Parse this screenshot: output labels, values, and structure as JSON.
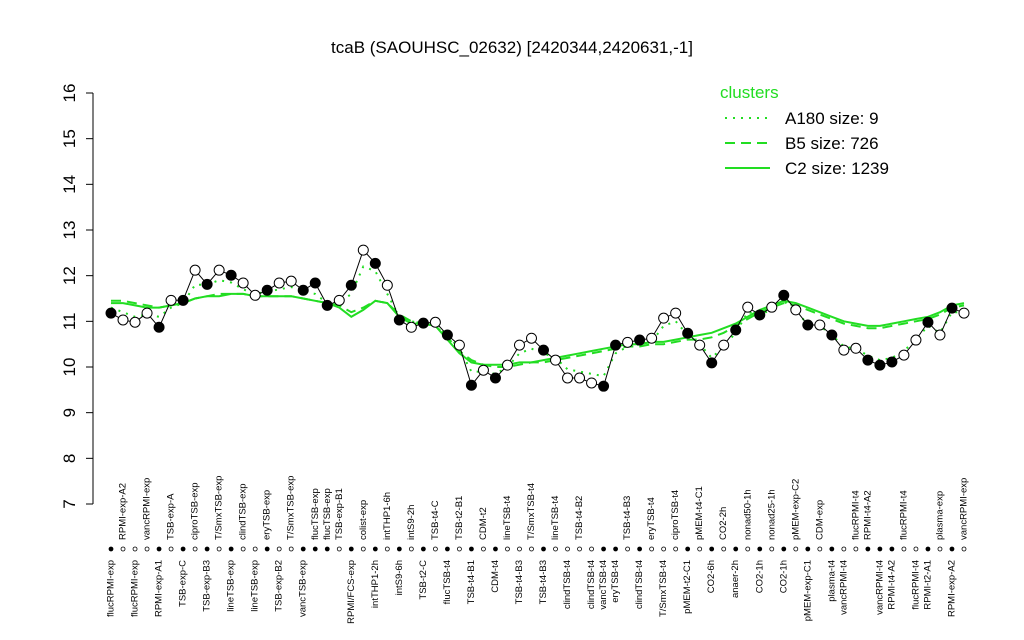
{
  "chart_data": {
    "type": "line",
    "title": "tcaB (SAOUHSC_02632) [2420344,2420631,-1]",
    "ylim": [
      7,
      16
    ],
    "yticks": [
      7,
      8,
      9,
      10,
      11,
      12,
      13,
      14,
      15,
      16
    ],
    "legend_title": "clusters",
    "legend_position": "top-right",
    "legend_color": "#22dd22",
    "categories": [
      "flucRPMI-exp",
      "RPMI-exp-A2",
      "flucRPMI-exp",
      "vancRPMI-exp",
      "RPMI-exp-A1",
      "TSB-exp-A",
      "TSB-exp-C",
      "ciproTSB-exp",
      "TSB-exp-B3",
      "T/SmxTSB-exp",
      "lineTSB-exp",
      "clindTSB-exp",
      "lineTSB-exp",
      "eryTSB-exp",
      "TSB-exp-B2",
      "T/SmxTSB-exp",
      "vancTSB-exp",
      "flucTSB-exp",
      "flucTSB-exp",
      "TSB-exp-B1",
      "RPMI/FCS-exp",
      "colist-exp",
      "intTHP1-2h",
      "intTHP1-6h",
      "intS9-6h",
      "intS9-2h",
      "TSB-t2-C",
      "TSB-t4-C",
      "flucTSB-t4",
      "TSB-t2-B1",
      "TSB-t4-B1",
      "CDM-t2",
      "CDM-t4",
      "lineTSB-t4",
      "TSB-t4-B3",
      "T/SmxTSB-t4",
      "TSB-t4-B3",
      "lineTSB-t4",
      "clindTSB-t4",
      "TSB-t4-B2",
      "clindTSB-t4",
      "vancTSB-t4",
      "eryTSB-t4",
      "TSB-t4-B3",
      "clindTSB-t4",
      "eryTSB-t4",
      "T/SmxTSB-t4",
      "ciproTSB-t4",
      "pMEM-t2-C1",
      "pMEM-t4-C1",
      "CO2-6h",
      "CO2-2h",
      "anaer-2h",
      "nonad50-1h",
      "CO2-1h",
      "nonad25-1h",
      "CO2-1h",
      "pMEM-exp-C2",
      "pMEM-exp-C1",
      "CDM-exp",
      "plasma-t4",
      "vancRPMI-t4",
      "flucRPMI-t4",
      "RPMI-t4-A2",
      "vancRPMI-t4",
      "RPMI-t4-A2",
      "flucRPMI-t4",
      "flucRPMI-t4",
      "RPMI-t2-A1",
      "plasma-exp",
      "RPMI-exp-A2",
      "vancRPMI-exp"
    ],
    "label_side": [
      "bottom",
      "top",
      "bottom",
      "top",
      "bottom",
      "top",
      "bottom",
      "top",
      "bottom",
      "top",
      "bottom",
      "top",
      "bottom",
      "top",
      "bottom",
      "top",
      "bottom",
      "top",
      "top",
      "top",
      "bottom",
      "top",
      "bottom",
      "top",
      "bottom",
      "top",
      "bottom",
      "top",
      "bottom",
      "top",
      "bottom",
      "top",
      "bottom",
      "top",
      "bottom",
      "top",
      "bottom",
      "top",
      "bottom",
      "top",
      "bottom",
      "bottom",
      "bottom",
      "top",
      "bottom",
      "top",
      "bottom",
      "top",
      "bottom",
      "top",
      "bottom",
      "top",
      "bottom",
      "top",
      "bottom",
      "top",
      "bottom",
      "top",
      "bottom",
      "top",
      "bottom",
      "bottom",
      "top",
      "top",
      "bottom",
      "bottom",
      "top",
      "bottom",
      "bottom",
      "top",
      "bottom",
      "top"
    ],
    "values": [
      11.18,
      11.03,
      10.98,
      11.18,
      10.87,
      11.46,
      11.46,
      12.12,
      11.81,
      12.12,
      12.01,
      11.84,
      11.57,
      11.68,
      11.84,
      11.88,
      11.68,
      11.84,
      11.35,
      11.46,
      11.79,
      12.56,
      12.27,
      11.79,
      11.03,
      10.87,
      10.96,
      10.98,
      10.7,
      10.48,
      9.6,
      9.93,
      9.76,
      10.04,
      10.48,
      10.63,
      10.37,
      10.15,
      9.76,
      9.76,
      9.65,
      9.58,
      10.48,
      10.54,
      10.59,
      10.63,
      11.07,
      11.18,
      10.74,
      10.48,
      10.09,
      10.48,
      10.81,
      11.31,
      11.14,
      11.31,
      11.57,
      11.25,
      10.92,
      10.92,
      10.7,
      10.37,
      10.41,
      10.15,
      10.04,
      10.11,
      10.26,
      10.59,
      10.98,
      10.7,
      11.29,
      11.18
    ],
    "marker_fills": [
      "#000",
      "#fff",
      "#fff",
      "#fff",
      "#000",
      "#fff",
      "#000",
      "#fff",
      "#000",
      "#fff",
      "#000",
      "#fff",
      "#fff",
      "#000",
      "#fff",
      "#fff",
      "#000",
      "#000",
      "#000",
      "#fff",
      "#000",
      "#fff",
      "#000",
      "#fff",
      "#000",
      "#fff",
      "#000",
      "#fff",
      "#000",
      "#fff",
      "#000",
      "#fff",
      "#000",
      "#fff",
      "#fff",
      "#fff",
      "#000",
      "#fff",
      "#fff",
      "#fff",
      "#fff",
      "#000",
      "#000",
      "#fff",
      "#000",
      "#fff",
      "#fff",
      "#fff",
      "#000",
      "#fff",
      "#000",
      "#fff",
      "#000",
      "#fff",
      "#000",
      "#fff",
      "#000",
      "#fff",
      "#000",
      "#fff",
      "#000",
      "#fff",
      "#fff",
      "#000",
      "#000",
      "#000",
      "#fff",
      "#fff",
      "#000",
      "#fff",
      "#000",
      "#fff"
    ],
    "series": [
      {
        "name": "A180 size: 9",
        "color": "#22dd22",
        "linestyle": "dotted",
        "values": [
          11.3,
          11.2,
          11.1,
          11.15,
          11.1,
          11.3,
          11.4,
          11.8,
          11.8,
          11.9,
          11.85,
          11.7,
          11.6,
          11.65,
          11.7,
          11.75,
          11.65,
          11.6,
          11.4,
          11.4,
          11.6,
          12.2,
          12.1,
          11.6,
          11.1,
          11.0,
          10.95,
          10.9,
          10.7,
          10.4,
          9.9,
          9.9,
          9.85,
          10.0,
          10.3,
          10.4,
          10.3,
          10.2,
          9.95,
          9.9,
          9.85,
          9.8,
          10.3,
          10.45,
          10.5,
          10.55,
          10.9,
          11.0,
          10.7,
          10.5,
          10.2,
          10.45,
          10.75,
          11.2,
          11.15,
          11.25,
          11.45,
          11.2,
          10.95,
          10.9,
          10.7,
          10.45,
          10.4,
          10.25,
          10.15,
          10.2,
          10.35,
          10.6,
          10.9,
          10.75,
          11.2,
          11.2
        ]
      },
      {
        "name": "B5 size: 726",
        "color": "#22dd22",
        "linestyle": "dashed",
        "values": [
          11.45,
          11.45,
          11.4,
          11.35,
          11.3,
          11.35,
          11.4,
          11.5,
          11.55,
          11.6,
          11.6,
          11.6,
          11.55,
          11.55,
          11.55,
          11.55,
          11.5,
          11.45,
          11.4,
          11.35,
          11.2,
          11.3,
          11.45,
          11.4,
          11.15,
          11.0,
          10.95,
          10.9,
          10.65,
          10.35,
          10.15,
          10.05,
          10.0,
          10.0,
          10.05,
          10.1,
          10.1,
          10.15,
          10.2,
          10.25,
          10.3,
          10.35,
          10.4,
          10.45,
          10.45,
          10.5,
          10.5,
          10.55,
          10.6,
          10.6,
          10.65,
          10.75,
          10.9,
          11.05,
          11.2,
          11.3,
          11.4,
          11.35,
          11.25,
          11.15,
          11.05,
          10.95,
          10.9,
          10.85,
          10.85,
          10.9,
          10.95,
          11.0,
          11.05,
          11.15,
          11.3,
          11.35
        ]
      },
      {
        "name": "C2 size: 1239",
        "color": "#22dd22",
        "linestyle": "solid",
        "values": [
          11.4,
          11.4,
          11.35,
          11.3,
          11.3,
          11.35,
          11.4,
          11.5,
          11.55,
          11.55,
          11.6,
          11.6,
          11.55,
          11.55,
          11.55,
          11.55,
          11.5,
          11.45,
          11.4,
          11.3,
          11.1,
          11.25,
          11.45,
          11.4,
          11.1,
          10.95,
          10.95,
          10.9,
          10.6,
          10.3,
          10.1,
          10.05,
          10.05,
          10.05,
          10.1,
          10.1,
          10.15,
          10.2,
          10.25,
          10.3,
          10.35,
          10.4,
          10.45,
          10.5,
          10.5,
          10.55,
          10.55,
          10.6,
          10.65,
          10.7,
          10.75,
          10.85,
          10.95,
          11.1,
          11.25,
          11.35,
          11.45,
          11.4,
          11.3,
          11.2,
          11.1,
          11.0,
          10.95,
          10.9,
          10.9,
          10.95,
          11.0,
          11.05,
          11.1,
          11.2,
          11.35,
          11.4
        ]
      }
    ]
  }
}
